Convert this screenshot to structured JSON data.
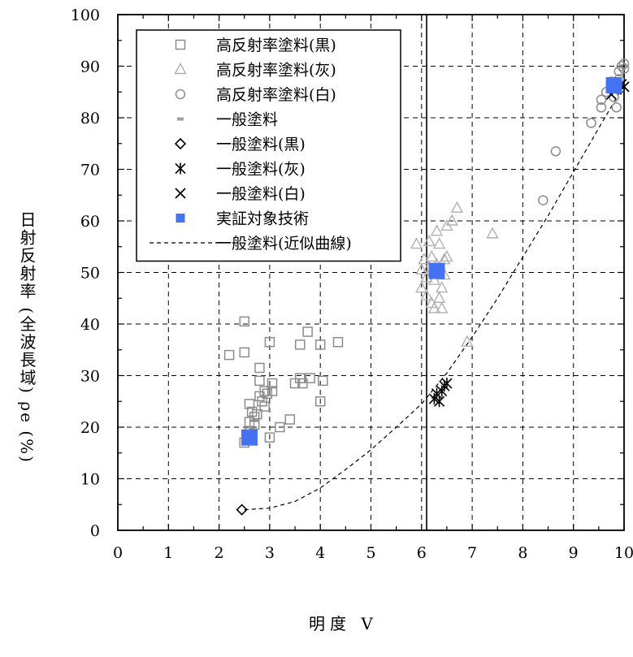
{
  "chart_data": {
    "type": "scatter",
    "xlabel": "明度 V",
    "ylabel": "日射反射率 (全波長域) ρe (%)",
    "xlim": [
      0,
      10
    ],
    "ylim": [
      0,
      100
    ],
    "xticks": [
      0,
      1,
      2,
      3,
      4,
      5,
      6,
      7,
      8,
      9,
      10
    ],
    "yticks": [
      0,
      10,
      20,
      30,
      40,
      50,
      60,
      70,
      80,
      90,
      100
    ],
    "grid": true,
    "legend_position": "top-left",
    "reference_line_x": 6.1,
    "series": [
      {
        "name": "高反射率塗料(黒)",
        "marker": "square-open",
        "color": "#8c8c8c",
        "points": [
          [
            2.2,
            34
          ],
          [
            2.5,
            34.5
          ],
          [
            2.5,
            40.5
          ],
          [
            2.5,
            17
          ],
          [
            2.6,
            19
          ],
          [
            2.6,
            21
          ],
          [
            2.6,
            24.5
          ],
          [
            2.65,
            23
          ],
          [
            2.7,
            22
          ],
          [
            2.7,
            20.5
          ],
          [
            2.75,
            22.5
          ],
          [
            2.8,
            26
          ],
          [
            2.8,
            29
          ],
          [
            2.8,
            31.5
          ],
          [
            2.85,
            25
          ],
          [
            2.9,
            24
          ],
          [
            2.9,
            27
          ],
          [
            2.95,
            26.5
          ],
          [
            3.0,
            18
          ],
          [
            3.0,
            36.5
          ],
          [
            3.05,
            28.5
          ],
          [
            3.05,
            27
          ],
          [
            3.2,
            20
          ],
          [
            3.4,
            21.5
          ],
          [
            3.5,
            28.5
          ],
          [
            3.6,
            36
          ],
          [
            3.6,
            29.5
          ],
          [
            3.65,
            28.5
          ],
          [
            3.75,
            38.5
          ],
          [
            3.8,
            29.5
          ],
          [
            4.0,
            36
          ],
          [
            4.0,
            25
          ],
          [
            4.05,
            29
          ],
          [
            4.35,
            36.5
          ]
        ]
      },
      {
        "name": "高反射率塗料(灰)",
        "marker": "triangle-open",
        "color": "#b0b0b0",
        "points": [
          [
            5.9,
            55.5
          ],
          [
            6.0,
            47
          ],
          [
            6.0,
            50.5
          ],
          [
            6.05,
            52.5
          ],
          [
            6.1,
            49
          ],
          [
            6.1,
            45.5
          ],
          [
            6.15,
            51
          ],
          [
            6.15,
            56
          ],
          [
            6.2,
            44
          ],
          [
            6.2,
            53
          ],
          [
            6.25,
            48.5
          ],
          [
            6.25,
            43
          ],
          [
            6.3,
            58
          ],
          [
            6.3,
            51.5
          ],
          [
            6.35,
            55.5
          ],
          [
            6.35,
            45
          ],
          [
            6.4,
            43
          ],
          [
            6.4,
            47
          ],
          [
            6.45,
            52.5
          ],
          [
            6.45,
            49.5
          ],
          [
            6.5,
            59
          ],
          [
            6.5,
            53
          ],
          [
            6.6,
            60
          ],
          [
            6.7,
            62.5
          ],
          [
            6.9,
            36.5
          ],
          [
            7.4,
            57.5
          ]
        ]
      },
      {
        "name": "高反射率塗料(白)",
        "marker": "circle-open",
        "color": "#8c8c8c",
        "points": [
          [
            8.4,
            64
          ],
          [
            8.65,
            73.5
          ],
          [
            9.35,
            79
          ],
          [
            9.55,
            82
          ],
          [
            9.55,
            83.5
          ],
          [
            9.65,
            85
          ],
          [
            9.75,
            87
          ],
          [
            9.8,
            84
          ],
          [
            9.85,
            82
          ],
          [
            9.85,
            86
          ],
          [
            9.9,
            87.5
          ],
          [
            9.9,
            89
          ],
          [
            9.95,
            90
          ],
          [
            10.0,
            90.5
          ],
          [
            10.0,
            89.5
          ]
        ]
      },
      {
        "name": "一般塗料",
        "marker": "dash",
        "color": "#a0a0a0",
        "points": []
      },
      {
        "name": "一般塗料(黒)",
        "marker": "diamond-open",
        "color": "#000000",
        "points": [
          [
            2.45,
            4
          ]
        ]
      },
      {
        "name": "一般塗料(灰)",
        "marker": "asterisk",
        "color": "#000000",
        "points": [
          [
            6.25,
            25.5
          ],
          [
            6.3,
            26.5
          ],
          [
            6.35,
            25
          ],
          [
            6.4,
            27
          ],
          [
            6.45,
            28
          ],
          [
            6.5,
            28.5
          ]
        ]
      },
      {
        "name": "一般塗料(白)",
        "marker": "x",
        "color": "#000000",
        "points": [
          [
            9.75,
            84.5
          ],
          [
            9.85,
            85.5
          ],
          [
            9.95,
            86.5
          ],
          [
            10.0,
            86
          ]
        ]
      },
      {
        "name": "実証対象技術",
        "marker": "square-filled",
        "color": "#4472f0",
        "points": [
          [
            2.6,
            18
          ],
          [
            6.3,
            50.3
          ],
          [
            9.8,
            86.3
          ]
        ]
      },
      {
        "name": "一般塗料(近似曲線)",
        "marker": "dashed-line",
        "color": "#000000",
        "curve": [
          [
            2.5,
            4
          ],
          [
            3,
            4.3
          ],
          [
            3.5,
            5.6
          ],
          [
            4,
            8.2
          ],
          [
            4.5,
            11.8
          ],
          [
            5,
            15.6
          ],
          [
            5.5,
            20
          ],
          [
            6,
            24.5
          ],
          [
            6.5,
            30.5
          ],
          [
            7,
            37.5
          ],
          [
            7.5,
            45
          ],
          [
            8,
            53
          ],
          [
            8.5,
            61
          ],
          [
            9,
            69.5
          ],
          [
            9.5,
            78
          ],
          [
            9.8,
            83
          ],
          [
            10,
            86.5
          ]
        ]
      }
    ]
  }
}
